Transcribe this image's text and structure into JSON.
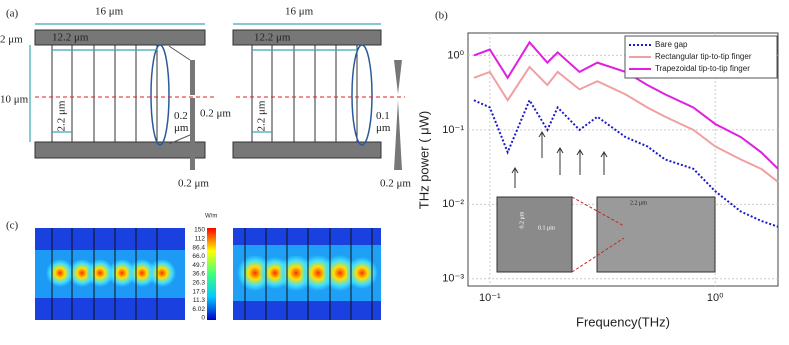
{
  "panel_a": {
    "label": "(a)",
    "left": {
      "width": "16 μm",
      "pad": "2 μm",
      "inner": "12.2 μm",
      "height": "10 μm",
      "pitch": "2.2 μm",
      "gap_top": "0.2\nμm",
      "gap_side": "0.2 μm",
      "bottom": "0.2 μm"
    },
    "right": {
      "width": "16 μm",
      "inner": "12.2 μm",
      "pitch": "2.2 μm",
      "gap_top": "0.1\nμm",
      "bottom": "0.2 μm"
    }
  },
  "panel_c": {
    "label": "(c)",
    "unit": "W/m",
    "scale": [
      "150",
      "112",
      "86.4",
      "66.0",
      "49.7",
      "36.6",
      "26.3",
      "17.9",
      "11.3",
      "6.02",
      "0"
    ]
  },
  "panel_b": {
    "label": "(b)",
    "inset": [
      "0.2 μm",
      "0.1 μm",
      "2.2 μm"
    ]
  },
  "chart_data": {
    "type": "line",
    "xlabel": "Frequency(THz)",
    "ylabel": "THz power ( μW)",
    "x": [
      0.085,
      0.1,
      0.12,
      0.15,
      0.18,
      0.2,
      0.25,
      0.3,
      0.4,
      0.5,
      0.6,
      0.8,
      1,
      1.3,
      1.6,
      1.9
    ],
    "series": [
      {
        "name": "Bare gap",
        "color": "#1a1acc",
        "dash": "2,2",
        "values": [
          0.25,
          0.2,
          0.05,
          0.25,
          0.1,
          0.2,
          0.1,
          0.15,
          0.08,
          0.06,
          0.04,
          0.03,
          0.015,
          0.008,
          0.006,
          0.005
        ]
      },
      {
        "name": "Rectangular tip-to-tip finger",
        "color": "#f0a0a0",
        "dash": "",
        "values": [
          0.5,
          0.6,
          0.25,
          0.7,
          0.4,
          0.6,
          0.35,
          0.45,
          0.3,
          0.2,
          0.15,
          0.1,
          0.06,
          0.04,
          0.03,
          0.02
        ]
      },
      {
        "name": "Trapezoidal tip-to-tip finger",
        "color": "#e020e0",
        "dash": "",
        "values": [
          1.0,
          1.2,
          0.5,
          1.5,
          0.8,
          1.1,
          0.6,
          0.8,
          0.6,
          0.4,
          0.3,
          0.2,
          0.12,
          0.08,
          0.05,
          0.03
        ]
      }
    ],
    "xlog": true,
    "ylog": true,
    "xlim": [
      0.08,
      1.9
    ],
    "ylim": [
      0.0008,
      2
    ],
    "xticks": [
      {
        "value": 0.1,
        "label": "10⁻¹"
      },
      {
        "value": 1,
        "label": "10⁰"
      }
    ],
    "yticks": [
      {
        "value": 0.001,
        "label": "10⁻³"
      },
      {
        "value": 0.01,
        "label": "10⁻²"
      },
      {
        "value": 0.1,
        "label": "10⁻¹"
      },
      {
        "value": 1,
        "label": "10⁰"
      }
    ],
    "grid": true,
    "legend": "top-right"
  }
}
